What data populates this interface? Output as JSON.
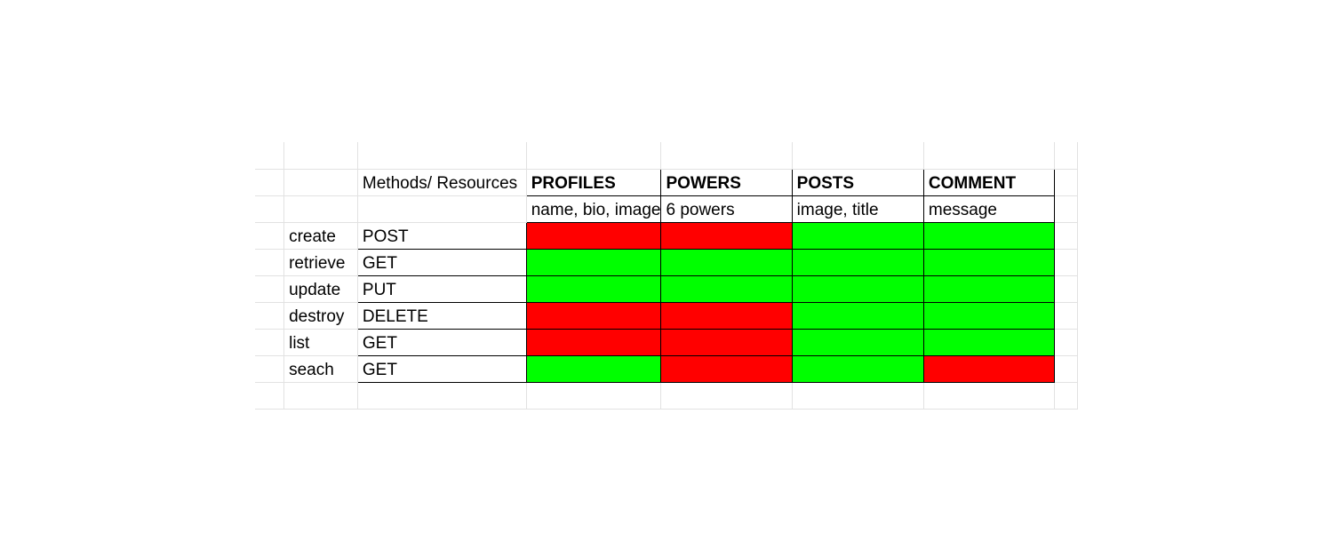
{
  "header_label": "Methods/ Resources",
  "resources": [
    {
      "name": "PROFILES",
      "fields": "name, bio, image"
    },
    {
      "name": "POWERS",
      "fields": "6 powers"
    },
    {
      "name": "POSTS",
      "fields": "image, title"
    },
    {
      "name": "COMMENT",
      "fields": "message"
    }
  ],
  "rows": [
    {
      "action": "create",
      "method": "POST",
      "cells": [
        "red",
        "red",
        "green",
        "green"
      ]
    },
    {
      "action": "retrieve",
      "method": "GET",
      "cells": [
        "green",
        "green",
        "green",
        "green"
      ]
    },
    {
      "action": "update",
      "method": "PUT",
      "cells": [
        "green",
        "green",
        "green",
        "green"
      ]
    },
    {
      "action": "destroy",
      "method": "DELETE",
      "cells": [
        "red",
        "red",
        "green",
        "green"
      ]
    },
    {
      "action": "list",
      "method": "GET",
      "cells": [
        "red",
        "red",
        "green",
        "green"
      ]
    },
    {
      "action": "seach",
      "method": "GET",
      "cells": [
        "green",
        "red",
        "green",
        "red"
      ]
    }
  ],
  "colors": {
    "allowed": "#00ff00",
    "denied": "#ff0000"
  }
}
